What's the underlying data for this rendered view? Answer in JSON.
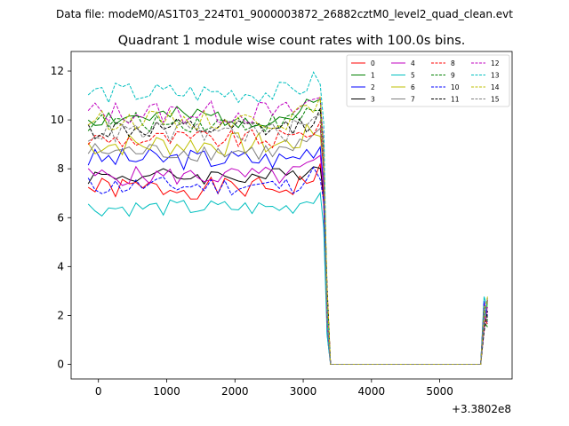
{
  "suptitle": "Data file: modeM0/AS1T03_224T01_9000003872_26882cztM0_level2_quad_clean.evt",
  "chart_data": {
    "type": "line",
    "title": "Quadrant 1 module wise count rates with 100.0s bins.",
    "xlabel": "",
    "ylabel": "",
    "x_offset_label": "+3.3802e8",
    "xlim": [
      -400,
      6060
    ],
    "ylim": [
      -0.6,
      12.8
    ],
    "x_ticks": [
      0,
      1000,
      2000,
      3000,
      4000,
      5000
    ],
    "x_tick_labels": [
      "0",
      "1000",
      "2000",
      "3000",
      "4000",
      "5000"
    ],
    "y_ticks": [
      0,
      2,
      4,
      6,
      8,
      10,
      12
    ],
    "y_tick_labels": [
      "0",
      "2",
      "4",
      "6",
      "8",
      "10",
      "12"
    ],
    "grid": false,
    "legend_position": "top-right",
    "legend_columns": 4,
    "series": [
      {
        "name": "0",
        "color": "#ff0000",
        "dash": "solid",
        "base": 7.2,
        "amp": 0.45,
        "seed": 1
      },
      {
        "name": "1",
        "color": "#008000",
        "dash": "solid",
        "base": 10.1,
        "amp": 0.45,
        "seed": 2
      },
      {
        "name": "2",
        "color": "#0000ff",
        "dash": "solid",
        "base": 8.4,
        "amp": 0.45,
        "seed": 3
      },
      {
        "name": "3",
        "color": "#000000",
        "dash": "solid",
        "base": 7.7,
        "amp": 0.35,
        "seed": 4
      },
      {
        "name": "4",
        "color": "#c000c0",
        "dash": "solid",
        "base": 7.7,
        "amp": 0.4,
        "seed": 5
      },
      {
        "name": "5",
        "color": "#00bfbf",
        "dash": "solid",
        "base": 6.4,
        "amp": 0.35,
        "seed": 6
      },
      {
        "name": "6",
        "color": "#bfbf00",
        "dash": "solid",
        "base": 9.0,
        "amp": 0.5,
        "seed": 7
      },
      {
        "name": "7",
        "color": "#808080",
        "dash": "solid",
        "base": 8.7,
        "amp": 0.4,
        "seed": 8
      },
      {
        "name": "8",
        "color": "#ff0000",
        "dash": "dashed",
        "base": 9.2,
        "amp": 0.4,
        "seed": 9
      },
      {
        "name": "9",
        "color": "#008000",
        "dash": "dashed",
        "base": 9.9,
        "amp": 0.4,
        "seed": 10
      },
      {
        "name": "10",
        "color": "#0000ff",
        "dash": "dashed",
        "base": 7.3,
        "amp": 0.4,
        "seed": 11
      },
      {
        "name": "11",
        "color": "#000000",
        "dash": "dashed",
        "base": 9.6,
        "amp": 0.45,
        "seed": 12
      },
      {
        "name": "12",
        "color": "#c000c0",
        "dash": "dashed",
        "base": 10.3,
        "amp": 0.5,
        "seed": 13
      },
      {
        "name": "13",
        "color": "#00bfbf",
        "dash": "dashed",
        "base": 11.1,
        "amp": 0.45,
        "seed": 14
      },
      {
        "name": "14",
        "color": "#bfbf00",
        "dash": "dashed",
        "base": 10.0,
        "amp": 0.4,
        "seed": 15
      },
      {
        "name": "15",
        "color": "#808080",
        "dash": "dashed",
        "base": 9.5,
        "amp": 0.45,
        "seed": 16
      }
    ]
  }
}
